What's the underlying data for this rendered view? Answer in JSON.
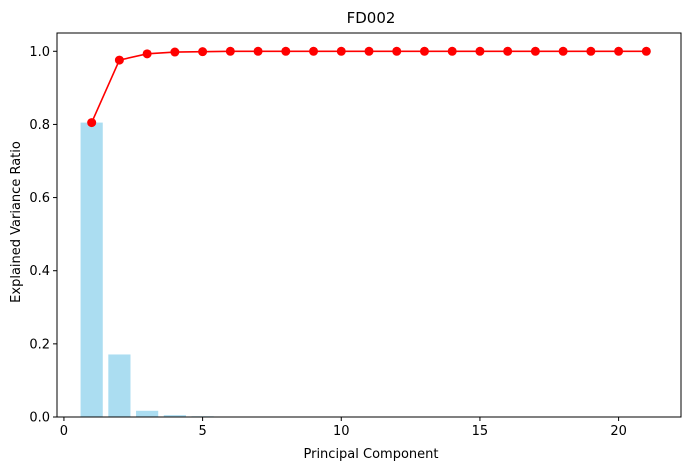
{
  "chart_data": {
    "type": "bar",
    "title": "FD002",
    "xlabel": "Principal Component",
    "ylabel": "Explained Variance Ratio",
    "xlim": [
      -0.25,
      22.25
    ],
    "ylim": [
      0,
      1.05
    ],
    "xticks": [
      0,
      5,
      10,
      15,
      20
    ],
    "yticks": [
      0.0,
      0.2,
      0.4,
      0.6,
      0.8,
      1.0
    ],
    "grid": false,
    "bars": {
      "x": [
        1,
        2,
        3,
        4,
        5,
        6,
        7,
        8,
        9,
        10,
        11,
        12,
        13,
        14,
        15,
        16,
        17,
        18,
        19,
        20,
        21
      ],
      "values": [
        0.805,
        0.171,
        0.017,
        0.005,
        0.002,
        0.001,
        0.0005,
        0.0003,
        0.0002,
        0.0001,
        0.0001,
        0.0001,
        0,
        0,
        0,
        0,
        0,
        0,
        0,
        0,
        0
      ],
      "color": "#87ceeb",
      "opacity": 0.7
    },
    "cumulative": {
      "x": [
        1,
        2,
        3,
        4,
        5,
        6,
        7,
        8,
        9,
        10,
        11,
        12,
        13,
        14,
        15,
        16,
        17,
        18,
        19,
        20,
        21
      ],
      "values": [
        0.805,
        0.976,
        0.993,
        0.998,
        0.999,
        1.0,
        1.0,
        1.0,
        1.0,
        1.0,
        1.0,
        1.0,
        1.0,
        1.0,
        1.0,
        1.0,
        1.0,
        1.0,
        1.0,
        1.0,
        1.0
      ],
      "color": "#ff0000",
      "marker": "circle"
    }
  }
}
